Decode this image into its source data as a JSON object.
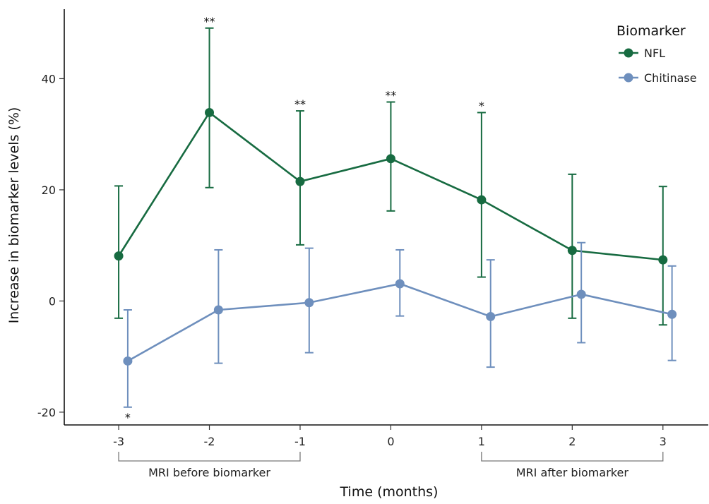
{
  "chart_data": {
    "type": "line",
    "xlabel": "Time (months)",
    "ylabel": "Increase in biomarker levels (%)",
    "x": [
      -3,
      -2,
      -1,
      0,
      1,
      2,
      3
    ],
    "x_tick_labels": [
      "-3",
      "-2",
      "-1",
      "0",
      "1",
      "2",
      "3"
    ],
    "xlim": [
      -3.6,
      3.5
    ],
    "ylim": [
      -22.3,
      52.5
    ],
    "y_ticks": [
      -20,
      0,
      20,
      40
    ],
    "y_tick_labels": [
      "-20",
      "0",
      "20",
      "40"
    ],
    "grid": false,
    "legend": {
      "title": "Biomarker",
      "placement": "top-right"
    },
    "series": [
      {
        "name": "NFL",
        "color": "#176b41",
        "x_offset": 0,
        "values": [
          8.1,
          33.9,
          21.5,
          25.6,
          18.2,
          9.1,
          7.4
        ],
        "error_low": [
          -3.1,
          20.4,
          10.1,
          16.2,
          4.3,
          -3.1,
          -4.3
        ],
        "error_high": [
          20.7,
          49.1,
          34.2,
          35.8,
          33.9,
          22.8,
          20.6
        ],
        "significance": [
          "",
          "**",
          "**",
          "**",
          "*",
          "",
          ""
        ],
        "significance_position": "above"
      },
      {
        "name": "Chitinase",
        "color": "#6e8fbd",
        "x_offset": 0.1,
        "values": [
          -10.8,
          -1.6,
          -0.3,
          3.1,
          -2.8,
          1.2,
          -2.4
        ],
        "error_low": [
          -19.1,
          -11.2,
          -9.3,
          -2.7,
          -11.9,
          -7.5,
          -10.7
        ],
        "error_high": [
          -1.6,
          9.2,
          9.5,
          9.2,
          7.4,
          10.5,
          6.3
        ],
        "significance": [
          "*",
          "",
          "",
          "",
          "",
          "",
          ""
        ],
        "significance_position": "below"
      }
    ],
    "annotations": [
      {
        "text": "MRI before biomarker",
        "x_range": [
          -3,
          -1
        ]
      },
      {
        "text": "MRI after biomarker",
        "x_range": [
          1,
          3
        ]
      }
    ]
  }
}
